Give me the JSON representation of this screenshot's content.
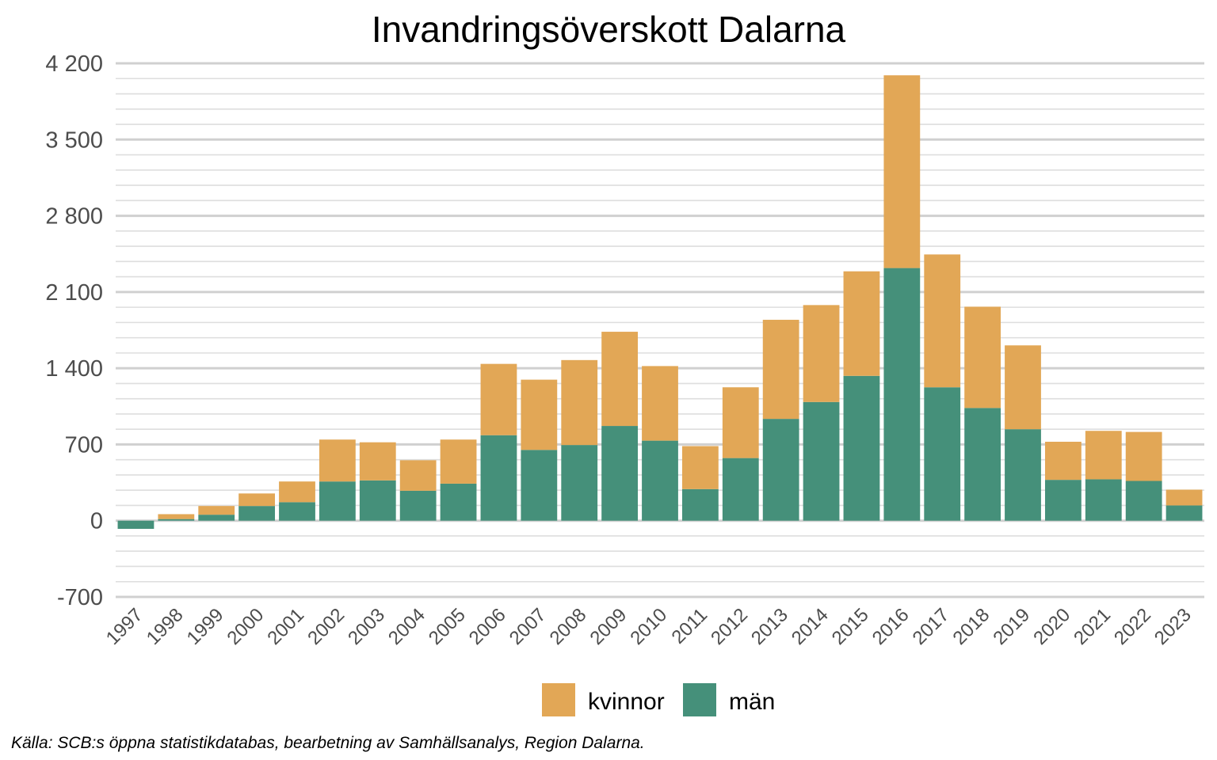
{
  "chart_data": {
    "type": "bar",
    "stacked": true,
    "title": "Invandringsöverskott Dalarna",
    "xlabel": "",
    "ylabel": "",
    "categories": [
      "1997",
      "1998",
      "1999",
      "2000",
      "2001",
      "2002",
      "2003",
      "2004",
      "2005",
      "2006",
      "2007",
      "2008",
      "2009",
      "2010",
      "2011",
      "2012",
      "2013",
      "2014",
      "2015",
      "2016",
      "2017",
      "2018",
      "2019",
      "2020",
      "2021",
      "2022",
      "2023"
    ],
    "series": [
      {
        "name": "män",
        "color": "#45907a",
        "values": [
          -75,
          15,
          55,
          135,
          170,
          360,
          370,
          275,
          340,
          785,
          650,
          695,
          870,
          735,
          290,
          575,
          935,
          1090,
          1330,
          2320,
          1225,
          1035,
          840,
          375,
          380,
          365,
          140
        ]
      },
      {
        "name": "kvinnor",
        "color": "#e2a756",
        "values": [
          0,
          45,
          80,
          115,
          190,
          385,
          350,
          280,
          405,
          655,
          645,
          780,
          865,
          685,
          395,
          650,
          910,
          890,
          960,
          1770,
          1220,
          930,
          770,
          350,
          445,
          450,
          145
        ]
      }
    ],
    "ylim": [
      -700,
      4200
    ],
    "yticks": [
      -700,
      0,
      700,
      1400,
      2100,
      2800,
      3500,
      4200
    ],
    "ytick_labels": [
      "-700",
      "0",
      "700",
      "1 400",
      "2 100",
      "2 800",
      "3 500",
      "4 200"
    ],
    "minor_grid_step": 140,
    "grid": true,
    "legend": {
      "position": "bottom",
      "items": [
        {
          "label": "kvinnor",
          "color": "#e2a756"
        },
        {
          "label": "män",
          "color": "#45907a"
        }
      ]
    },
    "caption": "Källa: SCB:s öppna statistikdatabas, bearbetning av Samhällsanalys, Region Dalarna."
  }
}
